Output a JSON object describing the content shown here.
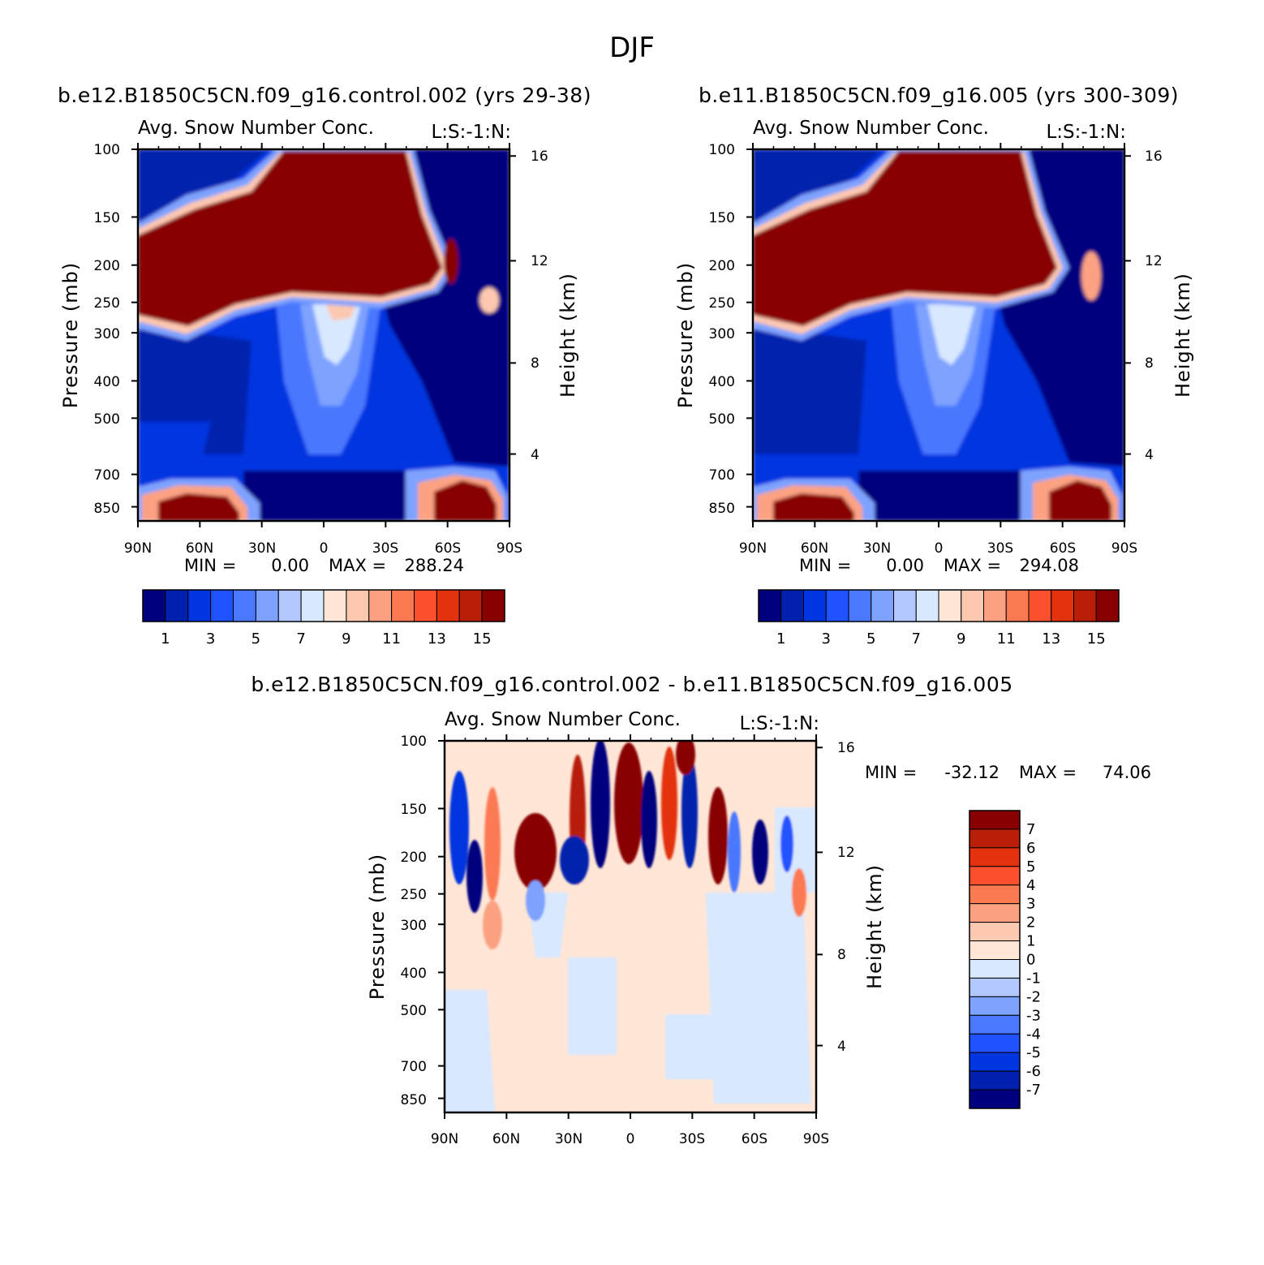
{
  "figure": {
    "title": "DJF"
  },
  "colors": {
    "abs_levels": [
      "#00007f",
      "#0020ad",
      "#0036e0",
      "#2152ff",
      "#4a78ff",
      "#7ea2ff",
      "#b0c8ff",
      "#d8e8ff",
      "#ffe6d6",
      "#fdc8b0",
      "#fca283",
      "#fc7a52",
      "#fb502e",
      "#e3320d",
      "#b81e08",
      "#880000"
    ],
    "diff_levels": [
      "#00007f",
      "#0020ad",
      "#0036e0",
      "#2152ff",
      "#4a78ff",
      "#7ea2ff",
      "#b0c8ff",
      "#d8e8ff",
      "#ffe6d6",
      "#fdc8b0",
      "#fca283",
      "#fc7a52",
      "#fb502e",
      "#e3320d",
      "#b81e08",
      "#880000"
    ]
  },
  "chart_data": [
    {
      "type": "heatmap",
      "title": "b.e12.B1850C5CN.f09_g16.control.002 (yrs 29-38)",
      "variable": "Avg. Snow Number Conc.",
      "variable_suffix": "L:S:-1:N:",
      "xlabel": "",
      "ylabel": "Pressure (mb)",
      "ylabel_right": "Height (km)",
      "x_ticks": [
        "90N",
        "60N",
        "30N",
        "0",
        "30S",
        "60S",
        "90S"
      ],
      "y_ticks": [
        "100",
        "150",
        "200",
        "250",
        "300",
        "400",
        "500",
        "700",
        "850"
      ],
      "y_ticks_values": [
        100,
        150,
        200,
        250,
        300,
        400,
        500,
        700,
        850
      ],
      "y_right_ticks": [
        "16",
        "12",
        "8",
        "4"
      ],
      "ylim": [
        100,
        925
      ],
      "min_label": "MIN =",
      "min_value": "0.00",
      "max_label": "MAX =",
      "max_value": "288.24",
      "colorbar_labels": [
        "1",
        "3",
        "5",
        "7",
        "9",
        "11",
        "13",
        "15"
      ],
      "grid": false
    },
    {
      "type": "heatmap",
      "title": "b.e11.B1850C5CN.f09_g16.005 (yrs 300-309)",
      "variable": "Avg. Snow Number Conc.",
      "variable_suffix": "L:S:-1:N:",
      "xlabel": "",
      "ylabel": "Pressure (mb)",
      "ylabel_right": "Height (km)",
      "x_ticks": [
        "90N",
        "60N",
        "30N",
        "0",
        "30S",
        "60S",
        "90S"
      ],
      "y_ticks": [
        "100",
        "150",
        "200",
        "250",
        "300",
        "400",
        "500",
        "700",
        "850"
      ],
      "y_ticks_values": [
        100,
        150,
        200,
        250,
        300,
        400,
        500,
        700,
        850
      ],
      "y_right_ticks": [
        "16",
        "12",
        "8",
        "4"
      ],
      "ylim": [
        100,
        925
      ],
      "min_label": "MIN =",
      "min_value": "0.00",
      "max_label": "MAX =",
      "max_value": "294.08",
      "colorbar_labels": [
        "1",
        "3",
        "5",
        "7",
        "9",
        "11",
        "13",
        "15"
      ],
      "grid": false
    },
    {
      "type": "heatmap",
      "title": "b.e12.B1850C5CN.f09_g16.control.002 - b.e11.B1850C5CN.f09_g16.005",
      "variable": "Avg. Snow Number Conc.",
      "variable_suffix": "L:S:-1:N:",
      "xlabel": "",
      "ylabel": "Pressure (mb)",
      "ylabel_right": "Height (km)",
      "x_ticks": [
        "90N",
        "60N",
        "30N",
        "0",
        "30S",
        "60S",
        "90S"
      ],
      "y_ticks": [
        "100",
        "150",
        "200",
        "250",
        "300",
        "400",
        "500",
        "700",
        "850"
      ],
      "y_ticks_values": [
        100,
        150,
        200,
        250,
        300,
        400,
        500,
        700,
        850
      ],
      "y_right_ticks": [
        "16",
        "12",
        "8",
        "4"
      ],
      "ylim": [
        100,
        925
      ],
      "min_label": "MIN =",
      "min_value": "-32.12",
      "max_label": "MAX =",
      "max_value": "74.06",
      "colorbar_labels": [
        "7",
        "6",
        "5",
        "4",
        "3",
        "2",
        "1",
        "0",
        "-1",
        "-2",
        "-3",
        "-4",
        "-5",
        "-6",
        "-7"
      ],
      "grid": false
    }
  ]
}
